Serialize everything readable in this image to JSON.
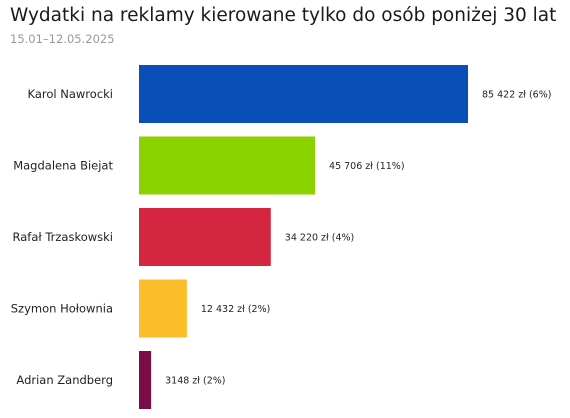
{
  "chart_data": {
    "type": "bar",
    "orientation": "horizontal",
    "title": "Wydatki na reklamy kierowane tylko do osób poniżej 30 lat",
    "subtitle": "15.01–12.05.2025",
    "categories": [
      "Karol Nawrocki",
      "Magdalena Biejat",
      "Rafał Trzaskowski",
      "Szymon Hołownia",
      "Adrian Zandberg"
    ],
    "values": [
      85422,
      45706,
      34220,
      12432,
      3148
    ],
    "value_labels": [
      "85 422 zł (6%)",
      "45 706 zł (11%)",
      "34 220 zł (4%)",
      "12 432 zł (2%)",
      "3148 zł (2%)"
    ],
    "colors": [
      "#0a4fb8",
      "#8cd100",
      "#d42640",
      "#fbbd2a",
      "#7a0d45"
    ],
    "xlim": [
      0,
      85422
    ],
    "grid": false,
    "legend": "none"
  }
}
